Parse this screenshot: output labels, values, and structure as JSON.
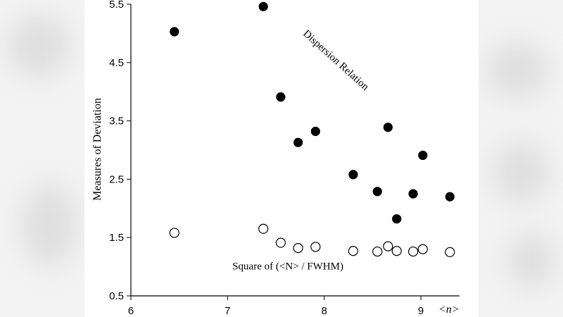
{
  "chart_data": {
    "type": "scatter",
    "title": "",
    "xlabel": "<n>",
    "ylabel": "Measures of Deviation",
    "xlim": [
      6,
      9.4
    ],
    "ylim": [
      0.5,
      5.5
    ],
    "xticks": [
      6,
      7,
      8,
      9
    ],
    "yticks": [
      0.5,
      1.5,
      2.5,
      3.5,
      4.5,
      5.5
    ],
    "xtick_labels": [
      "6",
      "7",
      "8",
      "9"
    ],
    "ytick_labels": [
      "0.5",
      "1.5",
      "2.5",
      "3.5",
      "4.5",
      "5.5"
    ],
    "grid": false,
    "legend": "none",
    "series": [
      {
        "marker": "filled-circle",
        "color": "#000000",
        "x": [
          6.45,
          7.37,
          7.55,
          7.73,
          7.91,
          8.3,
          8.55,
          8.66,
          8.75,
          8.92,
          9.02,
          9.3
        ],
        "y": [
          5.03,
          5.46,
          3.91,
          3.13,
          3.32,
          2.58,
          2.29,
          3.39,
          1.82,
          2.25,
          2.91,
          2.2
        ]
      },
      {
        "marker": "open-circle",
        "color": "#000000",
        "x": [
          6.45,
          7.37,
          7.55,
          7.73,
          7.91,
          8.3,
          8.55,
          8.66,
          8.75,
          8.92,
          9.02,
          9.3
        ],
        "y": [
          1.58,
          1.65,
          1.41,
          1.32,
          1.34,
          1.27,
          1.26,
          1.35,
          1.27,
          1.26,
          1.3,
          1.25
        ]
      }
    ],
    "annotations": [
      {
        "text": "Dispersion Relation",
        "x": 8.1,
        "y": 4.5,
        "rotation_deg": 42
      },
      {
        "text": "Square of (<N> / FWHM)",
        "x": 7.05,
        "y": 0.95,
        "rotation_deg": 0
      }
    ]
  }
}
